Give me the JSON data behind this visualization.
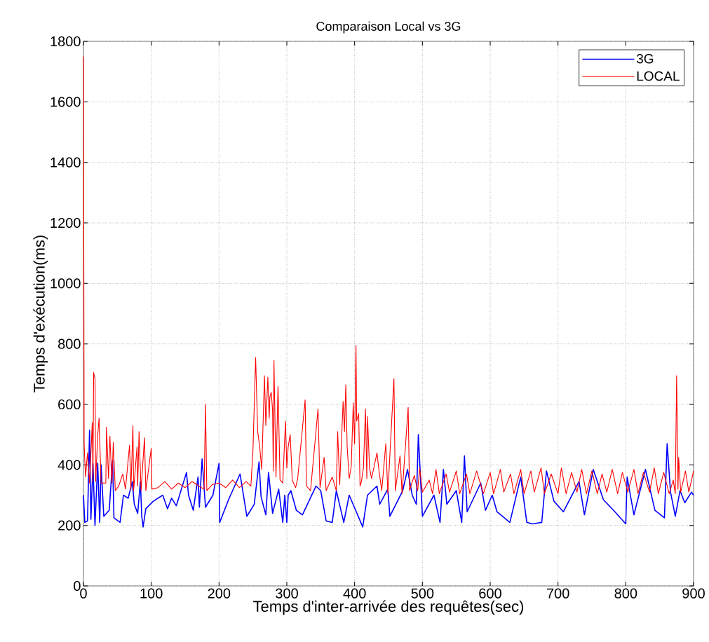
{
  "chart_data": {
    "type": "line",
    "title": "Comparaison Local vs 3G",
    "xlabel": "Temps d'inter-arrivée des requêtes(sec)",
    "ylabel": "Temps d'exécution(ms)",
    "xlim": [
      0,
      900
    ],
    "ylim": [
      0,
      1800
    ],
    "xticks": [
      0,
      100,
      200,
      300,
      400,
      500,
      600,
      700,
      800,
      900
    ],
    "yticks": [
      0,
      200,
      400,
      600,
      800,
      1000,
      1200,
      1400,
      1600,
      1800
    ],
    "grid": true,
    "legend": "top right",
    "line_style": "solid",
    "series": [
      {
        "name": "3G",
        "color": "#0000ff",
        "x": [
          0,
          2,
          6,
          9,
          11,
          14,
          17,
          21,
          24,
          26,
          30,
          38,
          43,
          45,
          54,
          59,
          66,
          72,
          75,
          80,
          84,
          86,
          88,
          92,
          103,
          117,
          124,
          130,
          137,
          152,
          155,
          162,
          169,
          171,
          175,
          180,
          191,
          200,
          201,
          214,
          231,
          241,
          252,
          259,
          262,
          269,
          273,
          279,
          288,
          294,
          297,
          300,
          302,
          306,
          314,
          323,
          343,
          350,
          358,
          367,
          373,
          384,
          392,
          412,
          419,
          433,
          437,
          449,
          452,
          471,
          478,
          485,
          491,
          494,
          500,
          517,
          526,
          531,
          536,
          550,
          558,
          562,
          566,
          586,
          593,
          603,
          610,
          629,
          645,
          654,
          662,
          676,
          683,
          694,
          708,
          731,
          739,
          752,
          767,
          784,
          800,
          802,
          812,
          829,
          843,
          857,
          861,
          866,
          873,
          880,
          887,
          897,
          900
        ],
        "values": [
          300,
          210,
          215,
          515,
          220,
          405,
          200,
          405,
          210,
          400,
          230,
          250,
          415,
          225,
          210,
          300,
          290,
          345,
          270,
          240,
          345,
          230,
          195,
          255,
          280,
          300,
          255,
          290,
          265,
          375,
          300,
          250,
          360,
          260,
          420,
          260,
          300,
          405,
          210,
          285,
          370,
          230,
          270,
          410,
          295,
          235,
          375,
          240,
          320,
          210,
          300,
          210,
          300,
          315,
          250,
          235,
          330,
          315,
          215,
          210,
          315,
          210,
          300,
          195,
          300,
          330,
          270,
          320,
          230,
          315,
          385,
          300,
          270,
          500,
          230,
          300,
          210,
          385,
          270,
          315,
          210,
          430,
          245,
          340,
          250,
          300,
          245,
          210,
          360,
          210,
          205,
          210,
          380,
          280,
          245,
          345,
          235,
          385,
          285,
          245,
          205,
          360,
          235,
          385,
          250,
          225,
          470,
          310,
          230,
          315,
          275,
          310,
          300
        ]
      },
      {
        "name": "LOCAL",
        "color": "#ff0000",
        "x": [
          0,
          1,
          3,
          6,
          9,
          13,
          14,
          15,
          17,
          18,
          21,
          23,
          26,
          33,
          34,
          37,
          39,
          42,
          44,
          47,
          52,
          58,
          62,
          68,
          70,
          73,
          74,
          79,
          80,
          82,
          85,
          90,
          92,
          100,
          101,
          110,
          120,
          130,
          140,
          150,
          160,
          170,
          178,
          180,
          182,
          190,
          200,
          210,
          220,
          230,
          240,
          247,
          250,
          254,
          257,
          260,
          263,
          267,
          269,
          272,
          274,
          275,
          277,
          279,
          280,
          281,
          284,
          287,
          290,
          294,
          298,
          300,
          302,
          305,
          308,
          313,
          316,
          327,
          329,
          335,
          346,
          349,
          355,
          358,
          367,
          373,
          375,
          378,
          383,
          385,
          387,
          389,
          392,
          395,
          398,
          400,
          402,
          403,
          406,
          408,
          410,
          413,
          416,
          418,
          419,
          422,
          425,
          433,
          436,
          440,
          446,
          449,
          458,
          460,
          467,
          470,
          479,
          481,
          488,
          493,
          496,
          500,
          510,
          515,
          520,
          525,
          535,
          540,
          550,
          555,
          565,
          570,
          580,
          590,
          600,
          605,
          615,
          620,
          630,
          635,
          645,
          650,
          660,
          665,
          675,
          680,
          690,
          700,
          705,
          712,
          720,
          728,
          735,
          742,
          750,
          758,
          765,
          772,
          780,
          788,
          795,
          803,
          812,
          818,
          826,
          835,
          842,
          848,
          856,
          864,
          870,
          873,
          875,
          877,
          878,
          881,
          888,
          893,
          900
        ],
        "values": [
          1750,
          470,
          360,
          440,
          340,
          540,
          345,
          705,
          685,
          345,
          495,
          555,
          340,
          340,
          525,
          355,
          495,
          340,
          475,
          315,
          330,
          370,
          320,
          465,
          320,
          530,
          315,
          460,
          330,
          510,
          315,
          490,
          315,
          455,
          320,
          325,
          345,
          320,
          340,
          325,
          345,
          330,
          320,
          600,
          315,
          335,
          340,
          325,
          350,
          325,
          345,
          330,
          445,
          755,
          510,
          460,
          385,
          695,
          530,
          690,
          555,
          625,
          640,
          580,
          380,
          745,
          360,
          660,
          350,
          340,
          545,
          390,
          460,
          500,
          350,
          325,
          355,
          615,
          330,
          315,
          585,
          325,
          425,
          315,
          360,
          315,
          510,
          335,
          610,
          510,
          665,
          460,
          355,
          395,
          605,
          470,
          795,
          545,
          570,
          330,
          345,
          390,
          585,
          355,
          560,
          390,
          355,
          440,
          380,
          315,
          470,
          305,
          685,
          315,
          430,
          305,
          590,
          315,
          365,
          315,
          390,
          310,
          350,
          305,
          385,
          305,
          370,
          310,
          380,
          305,
          370,
          305,
          380,
          305,
          375,
          305,
          385,
          310,
          370,
          305,
          385,
          305,
          380,
          310,
          390,
          305,
          370,
          305,
          390,
          305,
          375,
          310,
          385,
          305,
          380,
          305,
          370,
          310,
          385,
          305,
          375,
          310,
          385,
          305,
          375,
          310,
          390,
          305,
          375,
          305,
          350,
          305,
          695,
          320,
          425,
          310,
          380,
          310,
          380
        ]
      }
    ]
  }
}
